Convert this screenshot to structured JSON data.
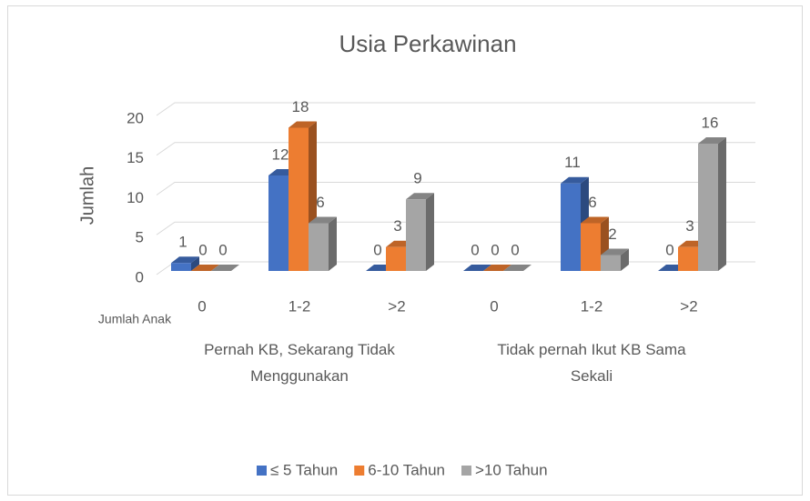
{
  "chart_data": {
    "type": "bar3d",
    "title": "Usia Perkawinan",
    "y_label": "Jumlah",
    "x_annotation": "Jumlah Anak",
    "categories": [
      "0",
      "1-2",
      ">2",
      "0",
      "1-2",
      ">2"
    ],
    "groups": [
      "Pernah KB, Sekarang Tidak Menggunakan",
      "Tidak pernah Ikut KB Sama Sekali"
    ],
    "series": [
      {
        "name": "≤ 5 Tahun",
        "color": "#4472c4",
        "values": [
          1,
          12,
          0,
          0,
          11,
          0
        ]
      },
      {
        "name": "6-10 Tahun",
        "color": "#ed7d31",
        "values": [
          0,
          18,
          3,
          0,
          6,
          3
        ]
      },
      {
        "name": ">10 Tahun",
        "color": "#a5a5a5",
        "values": [
          0,
          6,
          9,
          0,
          2,
          16
        ]
      }
    ],
    "ylim": [
      0,
      20
    ],
    "yticks": [
      0,
      5,
      10,
      15,
      20
    ],
    "grid": true,
    "legend": "bottom"
  }
}
